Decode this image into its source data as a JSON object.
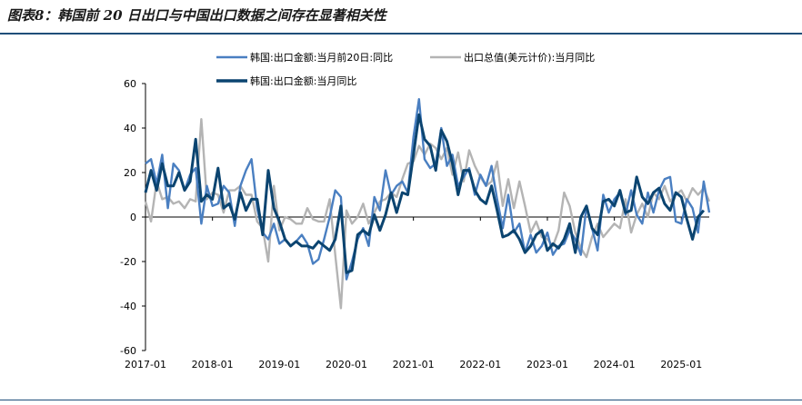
{
  "title": "图表8：韩国前 20 日出口与中国出口数据之间存在显著相关性",
  "chart_data": {
    "type": "line",
    "title": "图表8：韩国前 20 日出口与中国出口数据之间存在显著相关性",
    "xlabel": "",
    "ylabel": "",
    "ylim": [
      -60,
      60
    ],
    "yticks": [
      60,
      40,
      20,
      0,
      -20,
      -40,
      -60
    ],
    "xtick_labels": [
      "2017-01",
      "2018-01",
      "2019-01",
      "2020-01",
      "2021-01",
      "2022-01",
      "2023-01",
      "2024-01",
      "2025-01"
    ],
    "x_start": "2017-01",
    "legend": [
      "韩国:出口金额:当月前20日:同比",
      "出口总值(美元计价):当月同比",
      "韩国:出口金额:当月同比"
    ],
    "series": [
      {
        "name": "韩国:出口金额:当月前20日:同比",
        "color": "#4a7fc1",
        "values": [
          24,
          26,
          15,
          28,
          4,
          24,
          21,
          12,
          19,
          22,
          -3,
          14,
          5,
          6,
          14,
          11,
          -4,
          14,
          21,
          26,
          4,
          -7,
          -10,
          -3,
          -12,
          -10,
          -13,
          -11,
          -8,
          -12,
          -21,
          -19,
          -10,
          0,
          12,
          9,
          -28,
          -20,
          -10,
          -5,
          -13,
          9,
          3,
          21,
          10,
          14,
          16,
          11,
          36,
          53,
          26,
          22,
          24,
          40,
          23,
          28,
          14,
          18,
          22,
          10,
          19,
          14,
          23,
          8,
          -5,
          10,
          -7,
          -3,
          -16,
          -8,
          -16,
          -13,
          -7,
          -17,
          -13,
          -12,
          -6,
          -10,
          -17,
          5,
          -5,
          -15,
          10,
          2,
          8,
          11,
          1,
          12,
          1,
          -3,
          11,
          2,
          12,
          17,
          18,
          -2,
          -3,
          8,
          4,
          -7,
          16,
          2
        ]
      },
      {
        "name": "出口总值(美元计价):当月同比",
        "color": "#b4b4b4",
        "values": [
          7,
          -2,
          16,
          8,
          9,
          6,
          7,
          4,
          8,
          7,
          44,
          8,
          11,
          10,
          2,
          12,
          12,
          14,
          10,
          10,
          -2,
          -5,
          -20,
          14,
          -6,
          0,
          -1,
          -3,
          -3,
          4,
          -1,
          -2,
          -2,
          8,
          -17,
          -41,
          3,
          -3,
          0,
          6,
          -3,
          2,
          7,
          8,
          11,
          9,
          17,
          24,
          25,
          32,
          28,
          33,
          31,
          26,
          31,
          19,
          29,
          16,
          30,
          23,
          18,
          14,
          16,
          25,
          5,
          17,
          4,
          16,
          5,
          -7,
          -2,
          -9,
          -10,
          -13,
          -6,
          11,
          5,
          -7,
          -14,
          -18,
          -9,
          -3,
          -9,
          -6,
          -3,
          -5,
          8,
          -7,
          1,
          6,
          0,
          11,
          8,
          14,
          7,
          10,
          12,
          7,
          13,
          10,
          13,
          7
        ]
      },
      {
        "name": "韩国:出口金额:当月同比",
        "color": "#0b4470",
        "values": [
          11,
          21,
          12,
          24,
          14,
          14,
          20,
          12,
          16,
          35,
          7,
          10,
          8,
          22,
          4,
          6,
          -1,
          11,
          3,
          8,
          8,
          -8,
          21,
          4,
          -2,
          -10,
          -13,
          -11,
          -13,
          -13,
          -14,
          -11,
          -13,
          -15,
          -10,
          5,
          -25,
          -24,
          -8,
          -6,
          -8,
          1,
          -6,
          1,
          11,
          2,
          11,
          10,
          28,
          46,
          35,
          32,
          21,
          39,
          34,
          24,
          10,
          21,
          21,
          12,
          8,
          6,
          14,
          3,
          -9,
          -8,
          -6,
          -10,
          -16,
          -13,
          -8,
          -6,
          -15,
          -12,
          -14,
          -10,
          -3,
          -16,
          0,
          5,
          -5,
          -8,
          7,
          8,
          5,
          12,
          2,
          3,
          18,
          9,
          6,
          11,
          13,
          6,
          3,
          11,
          9,
          -1,
          -10,
          0,
          3
        ]
      }
    ]
  }
}
